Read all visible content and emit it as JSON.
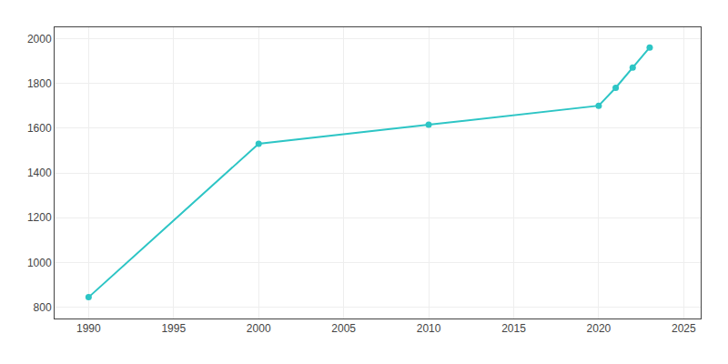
{
  "chart_data": {
    "type": "line",
    "x": [
      1990,
      2000,
      2010,
      2020,
      2021,
      2022,
      2023
    ],
    "values": [
      845,
      1530,
      1615,
      1700,
      1780,
      1870,
      1960
    ],
    "color": "#2DC5C5",
    "marker": "circle",
    "xlim": [
      1988,
      2026
    ],
    "ylim": [
      750,
      2050
    ],
    "xticks": [
      1990,
      1995,
      2000,
      2005,
      2010,
      2015,
      2020,
      2025
    ],
    "yticks": [
      800,
      1000,
      1200,
      1400,
      1600,
      1800,
      2000
    ],
    "grid": true
  }
}
